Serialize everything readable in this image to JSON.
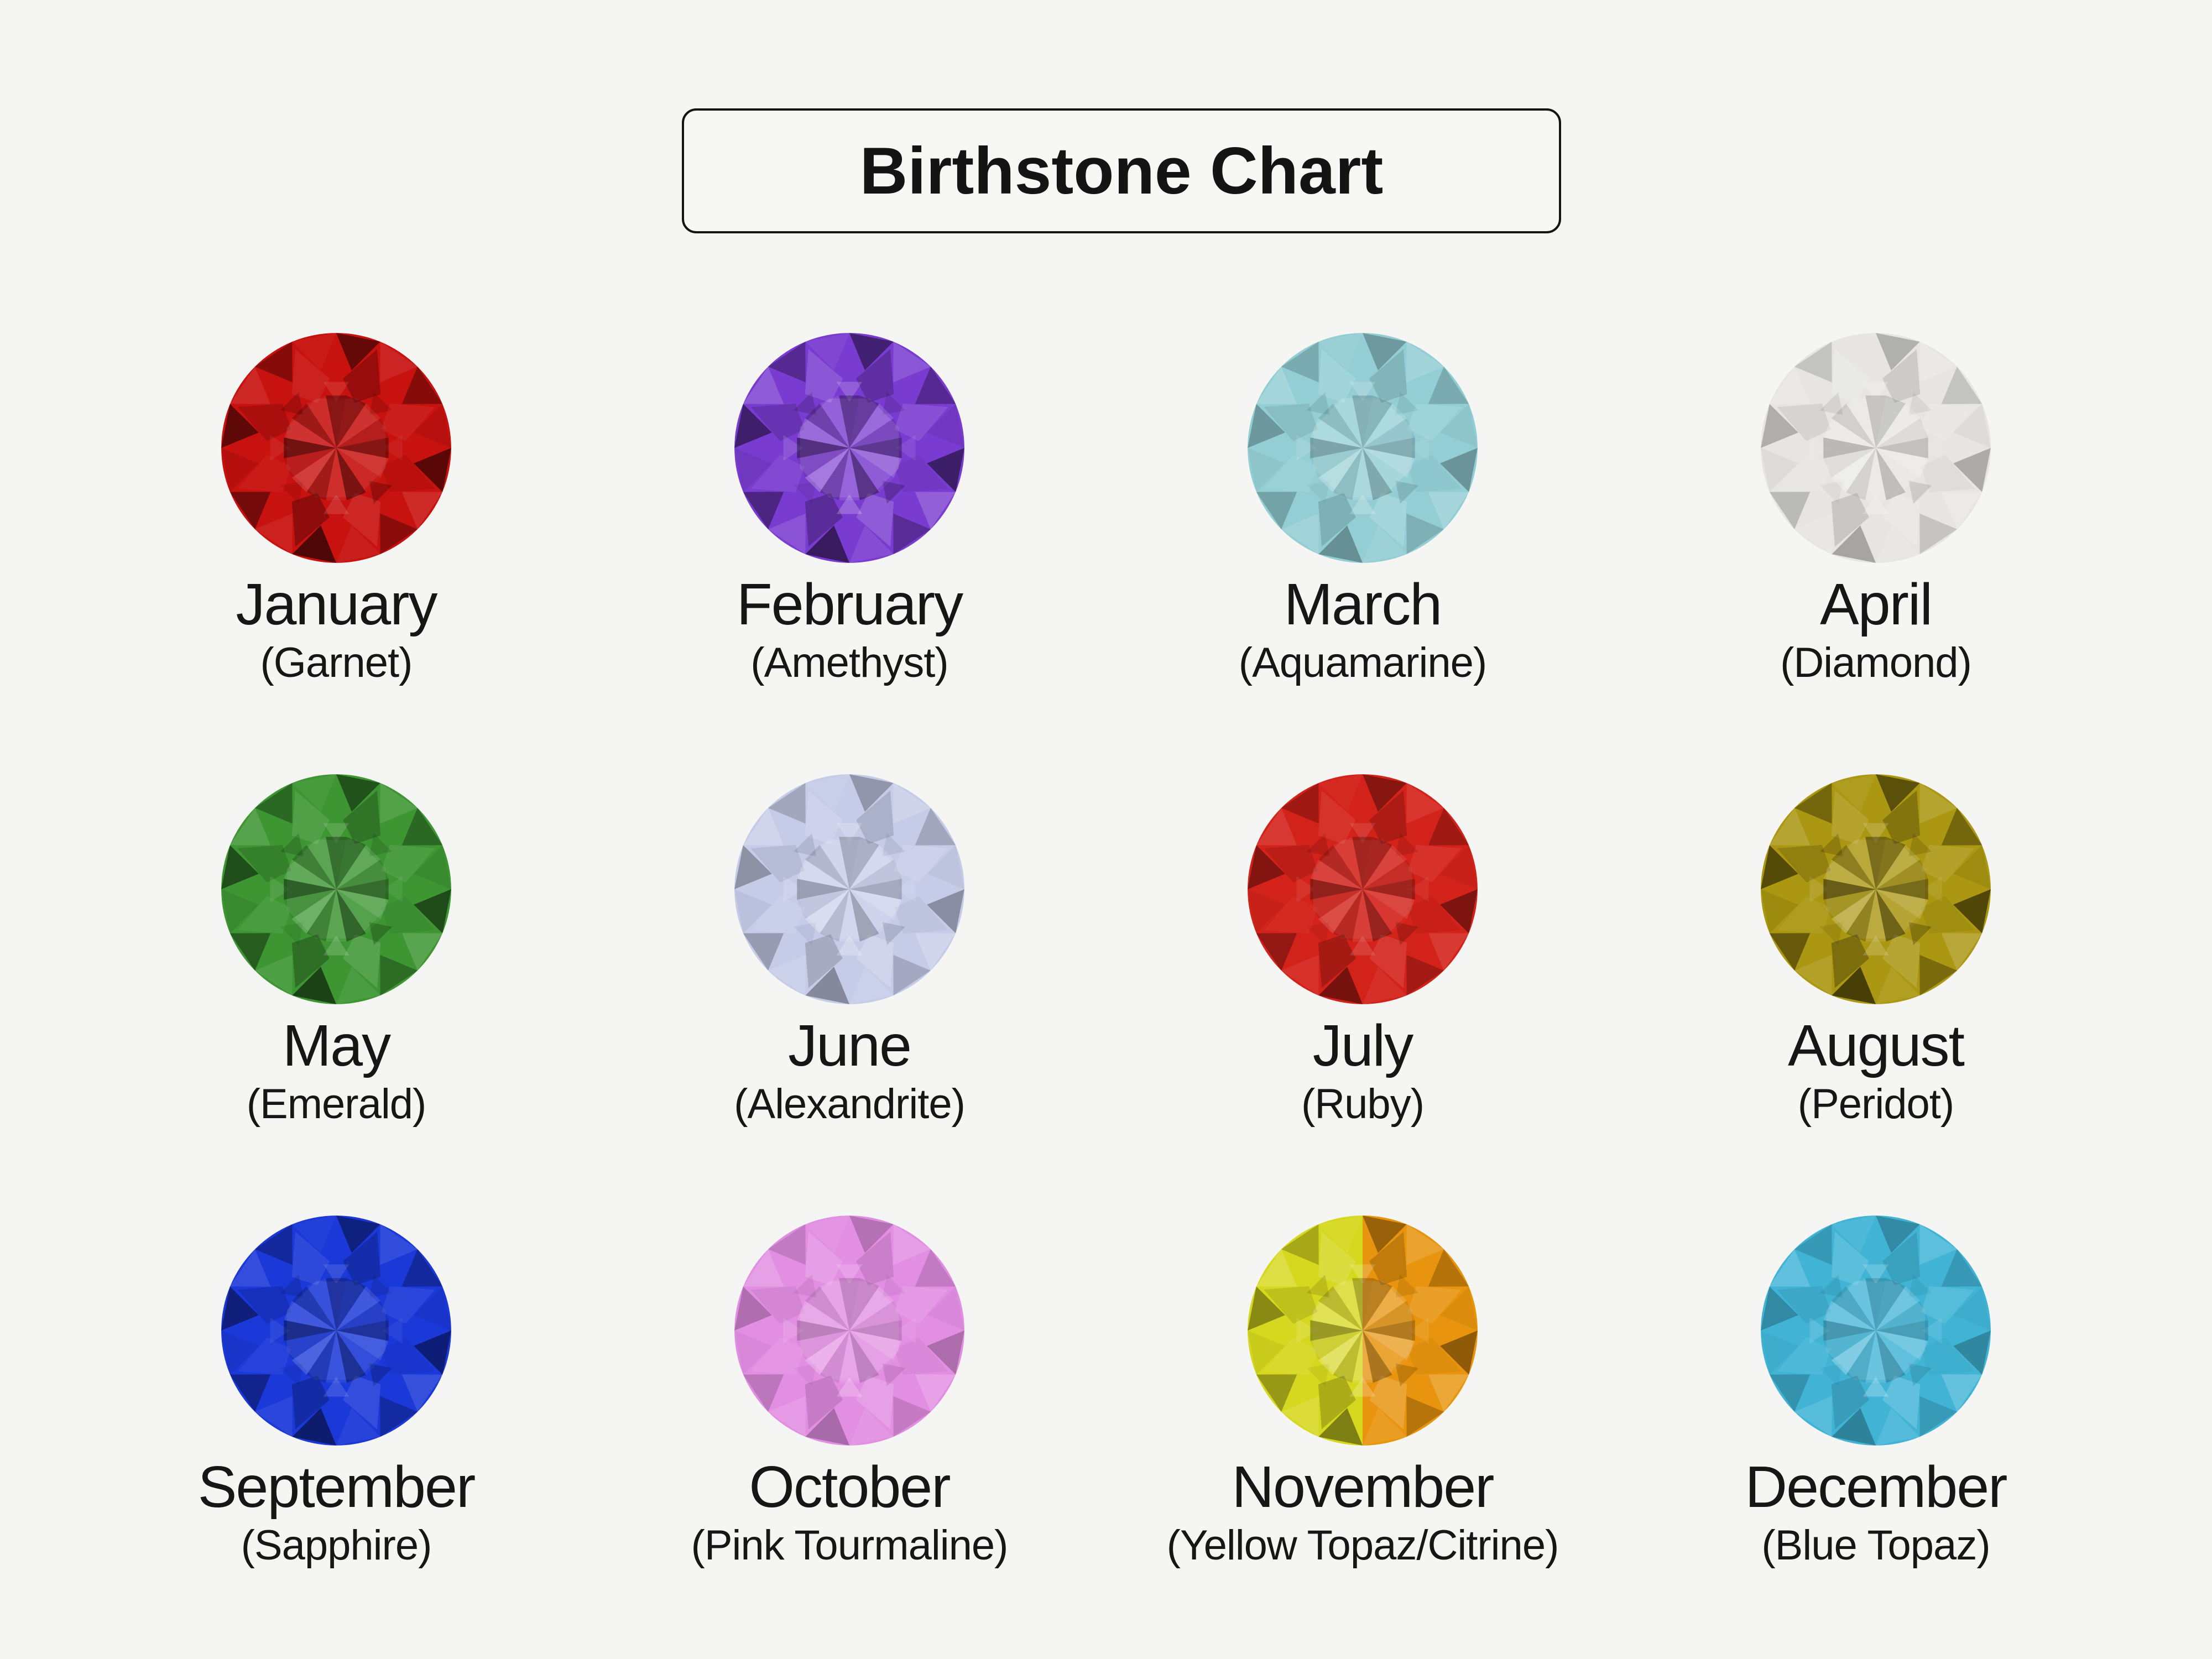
{
  "page": {
    "background": "#f5f5f3",
    "text_color": "#161616",
    "border_color": "#141414"
  },
  "title": {
    "label": "Birthstone Chart"
  },
  "months": [
    {
      "month": "January",
      "stone": "(Garnet)",
      "gem": {
        "base": "#c81210",
        "dark": 1.1,
        "light": 0.5
      }
    },
    {
      "month": "February",
      "stone": "(Amethyst)",
      "gem": {
        "base": "#7a3cd0",
        "dark": 1.0,
        "light": 0.9
      }
    },
    {
      "month": "March",
      "stone": "(Aquamarine)",
      "gem": {
        "base": "#93ced4",
        "dark": 0.55,
        "light": 0.9
      }
    },
    {
      "month": "April",
      "stone": "(Diamond)",
      "gem": {
        "base": "#e6e5e3",
        "dark": 0.5,
        "light": 1.0
      }
    },
    {
      "month": "May",
      "stone": "(Emerald)",
      "gem": {
        "base": "#3e9633",
        "dark": 1.0,
        "light": 0.7
      }
    },
    {
      "month": "June",
      "stone": "(Alexandrite)",
      "gem": {
        "base": "#c6cce8",
        "dark": 0.6,
        "light": 1.0
      }
    },
    {
      "month": "July",
      "stone": "(Ruby)",
      "gem": {
        "base": "#d3221a",
        "dark": 0.8,
        "light": 0.55
      }
    },
    {
      "month": "August",
      "stone": "(Peridot)",
      "gem": {
        "base": "#ab9712",
        "dark": 1.05,
        "light": 0.8
      }
    },
    {
      "month": "September",
      "stone": "(Sapphire)",
      "gem": {
        "base": "#1b38d8",
        "dark": 0.9,
        "light": 0.6
      }
    },
    {
      "month": "October",
      "stone": "(Pink Tourmaline)",
      "gem": {
        "base": "#e28ee2",
        "dark": 0.45,
        "light": 0.9
      }
    },
    {
      "month": "November",
      "stone": "(Yellow Topaz/Citrine)",
      "gem": {
        "base": "#d6d81f",
        "base2": "#e8940e",
        "dark": 0.75,
        "light": 0.9
      }
    },
    {
      "month": "December",
      "stone": "(Blue Topaz)",
      "gem": {
        "base": "#41b4d6",
        "dark": 0.5,
        "light": 0.95
      }
    }
  ]
}
